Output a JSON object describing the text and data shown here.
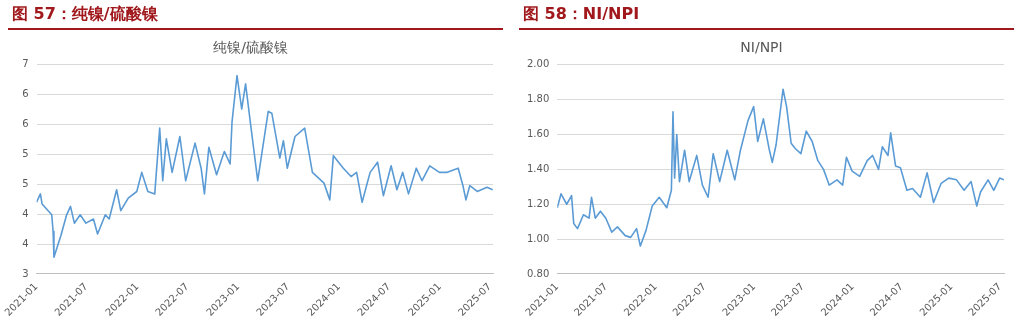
{
  "chart_data": [
    {
      "type": "line",
      "title": "图 57：纯镍/硫酸镍",
      "subtitle": "纯镍/硫酸镍",
      "x": [
        "2021-01-01",
        "2021-01-15",
        "2021-01-21",
        "2021-02-25",
        "2021-03-02",
        "2021-03-05",
        "2021-03-30",
        "2021-04-20",
        "2021-05-04",
        "2021-05-18",
        "2021-06-08",
        "2021-06-29",
        "2021-07-26",
        "2021-08-10",
        "2021-09-07",
        "2021-09-21",
        "2021-10-18",
        "2021-11-02",
        "2021-11-29",
        "2021-12-30",
        "2022-01-17",
        "2022-02-08",
        "2022-03-05",
        "2022-03-23",
        "2022-04-03",
        "2022-04-16",
        "2022-05-07",
        "2022-06-04",
        "2022-06-25",
        "2022-07-29",
        "2022-08-20",
        "2022-09-01",
        "2022-09-17",
        "2022-10-15",
        "2022-11-12",
        "2022-12-03",
        "2022-12-10",
        "2022-12-28",
        "2023-01-14",
        "2023-01-28",
        "2023-02-18",
        "2023-03-13",
        "2023-03-29",
        "2023-04-20",
        "2023-05-03",
        "2023-06-01",
        "2023-06-14",
        "2023-06-28",
        "2023-07-26",
        "2023-08-30",
        "2023-09-27",
        "2023-11-08",
        "2023-11-29",
        "2023-12-12",
        "2024-01-17",
        "2024-02-14",
        "2024-03-05",
        "2024-03-25",
        "2024-04-23",
        "2024-05-20",
        "2024-06-10",
        "2024-07-08",
        "2024-07-29",
        "2024-08-19",
        "2024-09-09",
        "2024-10-07",
        "2024-10-28",
        "2024-11-25",
        "2024-12-30",
        "2025-01-27",
        "2025-03-08",
        "2025-03-25",
        "2025-04-05",
        "2025-04-19",
        "2025-05-16",
        "2025-06-20",
        "2025-07-11"
      ],
      "series": [
        {
          "color": "#5b9bd5",
          "values": [
            4.2,
            4.34,
            4.17,
            3.99,
            3.71,
            3.28,
            3.64,
            3.99,
            4.13,
            3.85,
            3.99,
            3.85,
            3.92,
            3.67,
            3.99,
            3.92,
            4.41,
            4.06,
            4.27,
            4.38,
            4.7,
            4.38,
            4.34,
            5.44,
            4.56,
            5.26,
            4.7,
            5.3,
            4.56,
            5.19,
            4.77,
            4.34,
            5.12,
            4.66,
            5.05,
            4.84,
            5.55,
            6.32,
            5.76,
            6.18,
            5.4,
            4.56,
            5.05,
            5.72,
            5.69,
            4.94,
            5.23,
            4.77,
            5.3,
            5.44,
            4.7,
            4.52,
            4.24,
            4.98,
            4.77,
            4.63,
            4.7,
            4.2,
            4.7,
            4.87,
            4.31,
            4.81,
            4.41,
            4.7,
            4.34,
            4.77,
            4.56,
            4.81,
            4.7,
            4.7,
            4.77,
            4.48,
            4.24,
            4.48,
            4.38,
            4.45,
            4.41
          ]
        }
      ],
      "xlim": [
        "2021-01-01",
        "2025-07-12"
      ],
      "xticks": [
        "2021-01",
        "2021-07",
        "2022-01",
        "2022-07",
        "2023-01",
        "2023-07",
        "2024-01",
        "2024-07",
        "2025-01",
        "2025-07"
      ],
      "ylim": [
        3,
        6.5
      ],
      "yticks": [
        3,
        {
          "value": 3.5,
          "label": "4"
        },
        4,
        {
          "value": 4.5,
          "label": "5"
        },
        5,
        {
          "value": 5.5,
          "label": "6"
        },
        6,
        {
          "value": 6.5,
          "label": "7"
        }
      ],
      "grid": "y",
      "legend": false,
      "marker": "none",
      "line_style": "solid"
    },
    {
      "type": "line",
      "title": "图 58：NI/NPI",
      "subtitle": "NI/NPI",
      "x": [
        "2021-01-01",
        "2021-01-15",
        "2021-02-05",
        "2021-02-23",
        "2021-03-03",
        "2021-03-17",
        "2021-04-08",
        "2021-04-29",
        "2021-05-08",
        "2021-05-22",
        "2021-06-10",
        "2021-06-30",
        "2021-07-22",
        "2021-08-12",
        "2021-09-10",
        "2021-09-30",
        "2021-10-22",
        "2021-11-05",
        "2021-11-26",
        "2021-12-19",
        "2022-01-14",
        "2022-02-11",
        "2022-02-28",
        "2022-03-06",
        "2022-03-12",
        "2022-03-20",
        "2022-03-30",
        "2022-04-18",
        "2022-05-05",
        "2022-06-02",
        "2022-06-23",
        "2022-07-14",
        "2022-08-02",
        "2022-08-26",
        "2022-09-23",
        "2022-10-21",
        "2022-11-11",
        "2022-12-09",
        "2022-12-30",
        "2023-01-14",
        "2023-02-04",
        "2023-02-25",
        "2023-03-09",
        "2023-03-23",
        "2023-04-18",
        "2023-05-01",
        "2023-05-18",
        "2023-06-02",
        "2023-06-23",
        "2023-07-13",
        "2023-08-04",
        "2023-08-25",
        "2023-09-15",
        "2023-10-06",
        "2023-11-04",
        "2023-11-25",
        "2023-12-09",
        "2023-12-30",
        "2024-01-27",
        "2024-02-24",
        "2024-03-15",
        "2024-04-06",
        "2024-04-20",
        "2024-05-11",
        "2024-05-21",
        "2024-06-08",
        "2024-06-26",
        "2024-07-20",
        "2024-08-10",
        "2024-09-08",
        "2024-10-03",
        "2024-10-27",
        "2024-11-24",
        "2024-12-22",
        "2025-01-20",
        "2025-02-17",
        "2025-03-15",
        "2025-04-05",
        "2025-04-19",
        "2025-05-17",
        "2025-06-07",
        "2025-06-29",
        "2025-07-15"
      ],
      "series": [
        {
          "color": "#5b9bd5",
          "values": [
            1.18,
            1.26,
            1.2,
            1.25,
            1.09,
            1.06,
            1.14,
            1.12,
            1.24,
            1.12,
            1.16,
            1.12,
            1.04,
            1.07,
            1.02,
            1.01,
            1.06,
            0.96,
            1.05,
            1.19,
            1.24,
            1.18,
            1.28,
            1.73,
            1.35,
            1.6,
            1.33,
            1.51,
            1.33,
            1.48,
            1.31,
            1.24,
            1.49,
            1.33,
            1.51,
            1.34,
            1.51,
            1.68,
            1.76,
            1.56,
            1.69,
            1.52,
            1.44,
            1.54,
            1.86,
            1.76,
            1.55,
            1.52,
            1.49,
            1.62,
            1.56,
            1.45,
            1.4,
            1.31,
            1.34,
            1.31,
            1.47,
            1.39,
            1.36,
            1.45,
            1.48,
            1.4,
            1.53,
            1.48,
            1.61,
            1.42,
            1.41,
            1.28,
            1.29,
            1.24,
            1.38,
            1.21,
            1.32,
            1.35,
            1.34,
            1.28,
            1.33,
            1.19,
            1.27,
            1.34,
            1.28,
            1.35,
            1.34
          ]
        }
      ],
      "xlim": [
        "2021-01-01",
        "2025-07-15"
      ],
      "xticks": [
        "2021-01",
        "2021-07",
        "2022-01",
        "2022-07",
        "2023-01",
        "2023-07",
        "2024-01",
        "2024-07",
        "2025-01",
        "2025-07"
      ],
      "ylim": [
        0.8,
        2
      ],
      "yticks": [
        {
          "value": 0.8,
          "label": "0.80"
        },
        {
          "value": 1,
          "label": "1.00"
        },
        {
          "value": 1.2,
          "label": "1.20"
        },
        {
          "value": 1.4,
          "label": "1.40"
        },
        {
          "value": 1.6,
          "label": "1.60"
        },
        {
          "value": 1.8,
          "label": "1.80"
        },
        {
          "value": 2,
          "label": "2.00"
        }
      ],
      "grid": "y",
      "legend": false,
      "marker": "none",
      "line_style": "solid"
    }
  ]
}
